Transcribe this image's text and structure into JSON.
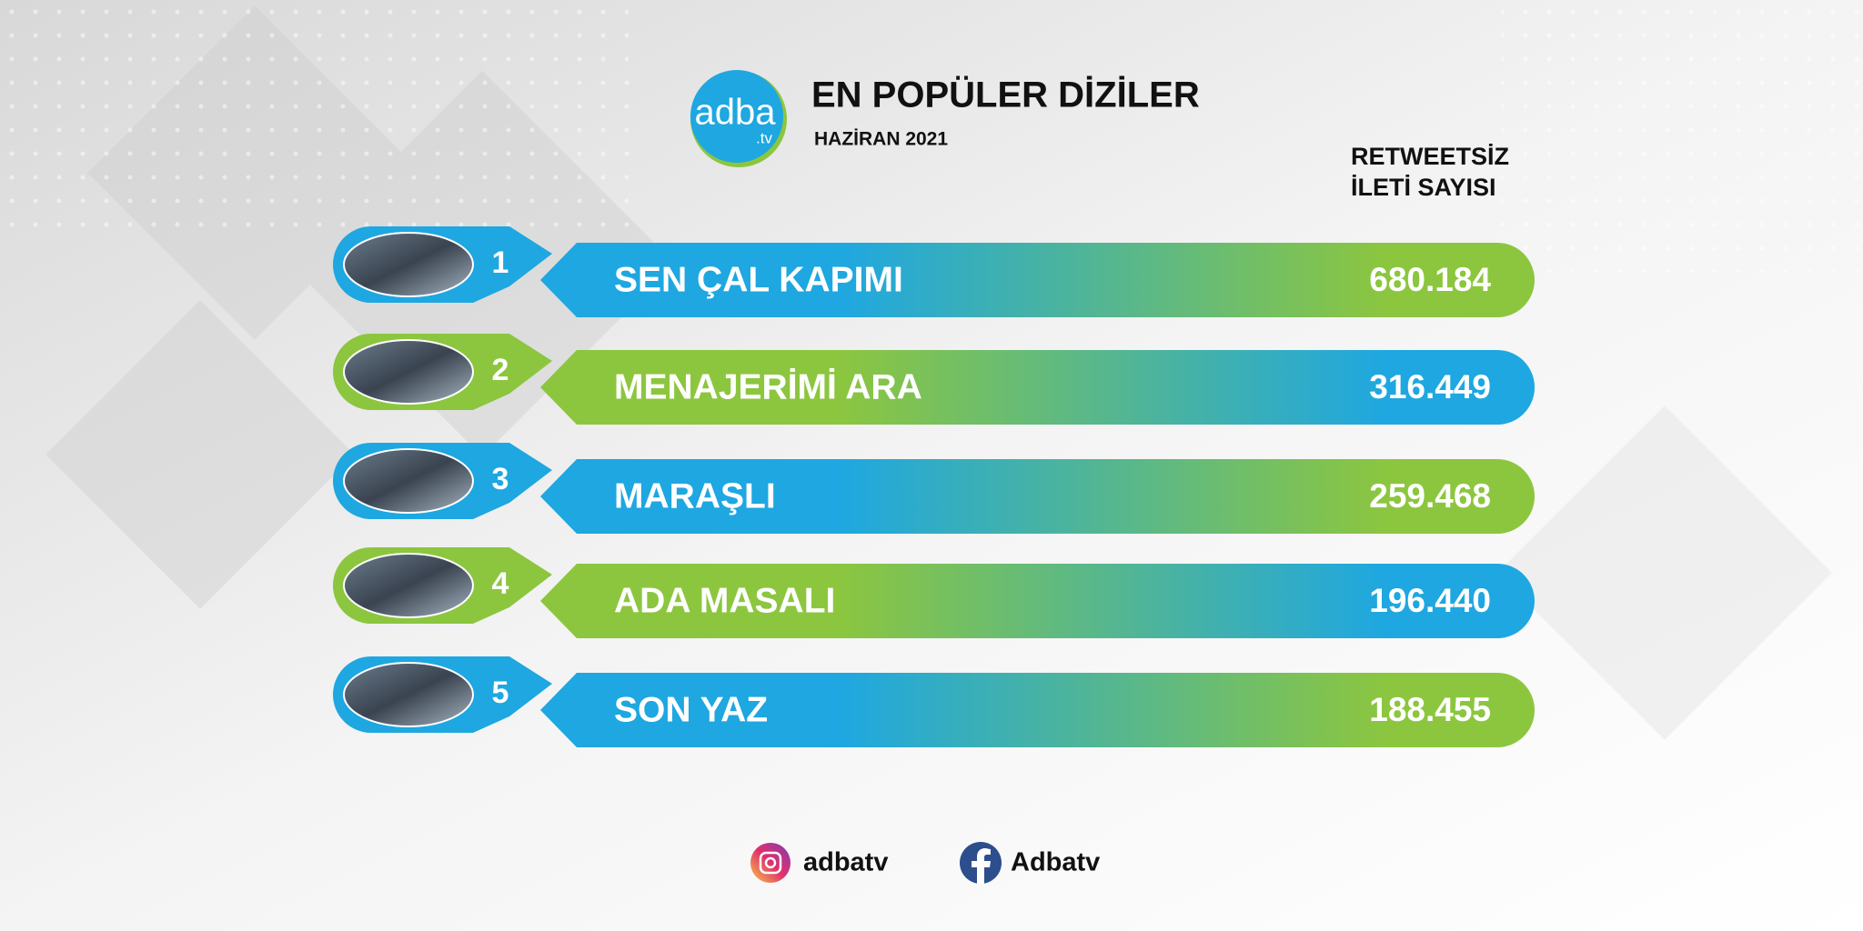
{
  "header": {
    "logo": {
      "name": "adba",
      "suffix": ".tv"
    },
    "title": "EN POPÜLER DİZİLER",
    "subtitle": "HAZİRAN 2021"
  },
  "column_header": [
    "RETWEETSİZ",
    "İLETİ SAYISI"
  ],
  "rows": [
    {
      "rank": "1",
      "title": "SEN ÇAL KAPIMI",
      "count": "680.184"
    },
    {
      "rank": "2",
      "title": "MENAJERİMİ ARA",
      "count": "316.449"
    },
    {
      "rank": "3",
      "title": "MARAŞLI",
      "count": "259.468"
    },
    {
      "rank": "4",
      "title": "ADA MASALI",
      "count": "196.440"
    },
    {
      "rank": "5",
      "title": "SON YAZ",
      "count": "188.455"
    }
  ],
  "footer": {
    "instagram": "adbatv",
    "facebook": "Adbatv"
  }
}
